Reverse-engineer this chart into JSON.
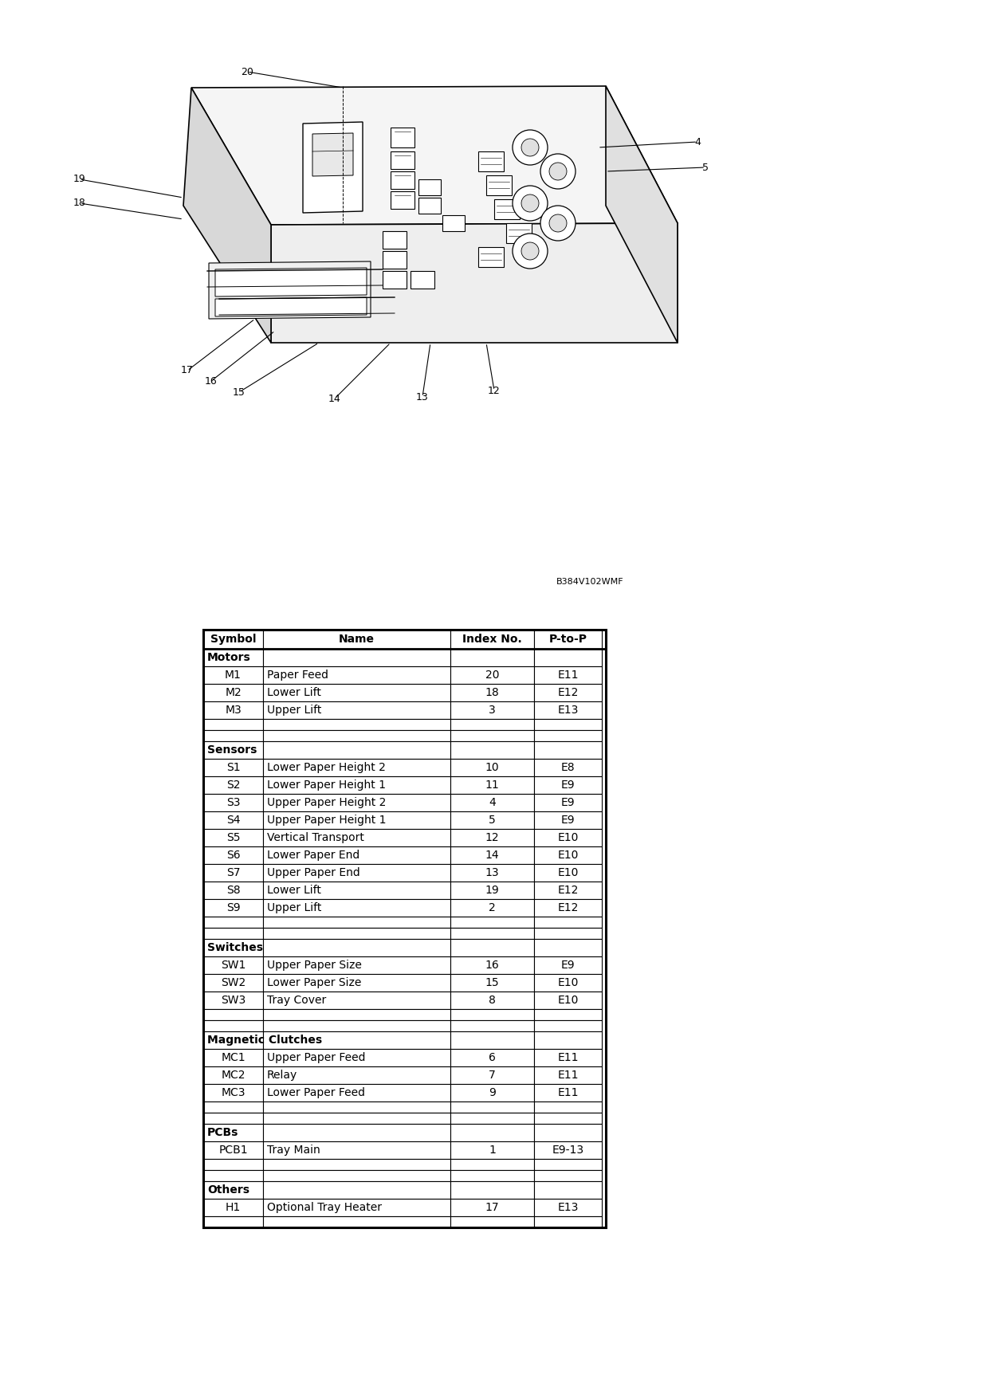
{
  "watermark": "B384V102WMF",
  "table_header": [
    "Symbol",
    "Name",
    "Index No.",
    "P-to-P"
  ],
  "sections": [
    {
      "section_name": "Motors",
      "rows": [
        [
          "M1",
          "Paper Feed",
          "20",
          "E11"
        ],
        [
          "M2",
          "Lower Lift",
          "18",
          "E12"
        ],
        [
          "M3",
          "Upper Lift",
          "3",
          "E13"
        ]
      ]
    },
    {
      "section_name": "Sensors",
      "rows": [
        [
          "S1",
          "Lower Paper Height 2",
          "10",
          "E8"
        ],
        [
          "S2",
          "Lower Paper Height 1",
          "11",
          "E9"
        ],
        [
          "S3",
          "Upper Paper Height 2",
          "4",
          "E9"
        ],
        [
          "S4",
          "Upper Paper Height 1",
          "5",
          "E9"
        ],
        [
          "S5",
          "Vertical Transport",
          "12",
          "E10"
        ],
        [
          "S6",
          "Lower Paper End",
          "14",
          "E10"
        ],
        [
          "S7",
          "Upper Paper End",
          "13",
          "E10"
        ],
        [
          "S8",
          "Lower Lift",
          "19",
          "E12"
        ],
        [
          "S9",
          "Upper Lift",
          "2",
          "E12"
        ]
      ]
    },
    {
      "section_name": "Switches",
      "rows": [
        [
          "SW1",
          "Upper Paper Size",
          "16",
          "E9"
        ],
        [
          "SW2",
          "Lower Paper Size",
          "15",
          "E10"
        ],
        [
          "SW3",
          "Tray Cover",
          "8",
          "E10"
        ]
      ]
    },
    {
      "section_name": "Magnetic Clutches",
      "rows": [
        [
          "MC1",
          "Upper Paper Feed",
          "6",
          "E11"
        ],
        [
          "MC2",
          "Relay",
          "7",
          "E11"
        ],
        [
          "MC3",
          "Lower Paper Feed",
          "9",
          "E11"
        ]
      ]
    },
    {
      "section_name": "PCBs",
      "rows": [
        [
          "PCB1",
          "Tray Main",
          "1",
          "E9-13"
        ]
      ]
    },
    {
      "section_name": "Others",
      "rows": [
        [
          "H1",
          "Optional Tray Heater",
          "17",
          "E13"
        ]
      ]
    }
  ],
  "background_color": "#ffffff"
}
